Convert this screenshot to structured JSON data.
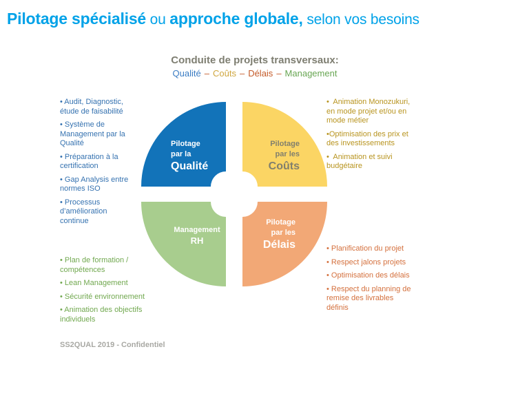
{
  "palette": {
    "title": "#00A2E8",
    "heading": "#7E7E71",
    "separator": "#C45A28",
    "footer": "#A8A8A3"
  },
  "title": {
    "bold1": "Pilotage spécialisé",
    "regular1": " ou ",
    "bold2": "approche globale,",
    "regular2": " selon vos besoins"
  },
  "heading": {
    "title": "Conduite de projets transversaux:",
    "separator": "–",
    "keywords": {
      "qualite": "Qualité",
      "couts": "Coûts",
      "delais": "Délais",
      "management": "Management"
    },
    "keyword_colors": {
      "qualite": "#3A7CC3",
      "couts": "#CFA63E",
      "delais": "#C45A28",
      "management": "#68A653"
    }
  },
  "pie": {
    "quadrants": [
      {
        "id": "qualite",
        "line1": "Pilotage",
        "line2": "par la",
        "line3": "Qualité",
        "color": "#1273B9",
        "text_color": "#FFFFFF"
      },
      {
        "id": "couts",
        "line1": "Pilotage",
        "line2": "par les",
        "line3": "Coûts",
        "color": "#FBD564",
        "text_color": "#817F6D"
      },
      {
        "id": "management-rh",
        "line1": "Management",
        "line2": "RH",
        "color": "#A8CD8E",
        "text_color": "#FFFFFF"
      },
      {
        "id": "delais",
        "line1": "Pilotage",
        "line2": "par les",
        "line3": "Délais",
        "color": "#F2A876",
        "text_color": "#FFFFFF"
      }
    ]
  },
  "lists": {
    "qualite": {
      "color": "#3572B0",
      "items": [
        "• Audit, Diagnostic, étude de faisabilité",
        "• Système de Management par la Qualité",
        "• Préparation à la certification",
        "• Gap Analysis entre normes ISO",
        "• Processus d’amélioration continue"
      ]
    },
    "couts": {
      "color": "#B8941F",
      "items": [
        "•  Animation Monozukuri, en mode projet et/ou en mode métier",
        "•Optimisation des prix et des investissements",
        "•  Animation et suivi budgétaire"
      ]
    },
    "management": {
      "color": "#71A84F",
      "items": [
        "• Plan de formation / compétences",
        "• Lean Management",
        "• Sécurité environnement",
        "• Animation des objectifs individuels"
      ]
    },
    "delais": {
      "color": "#D4703D",
      "items": [
        "• Planification du projet",
        "• Respect jalons projets",
        "• Optimisation des délais",
        "• Respect du planning de remise des livrables définis"
      ]
    }
  },
  "footer": {
    "text": "SS2QUAL 2019 - Confidentiel"
  }
}
